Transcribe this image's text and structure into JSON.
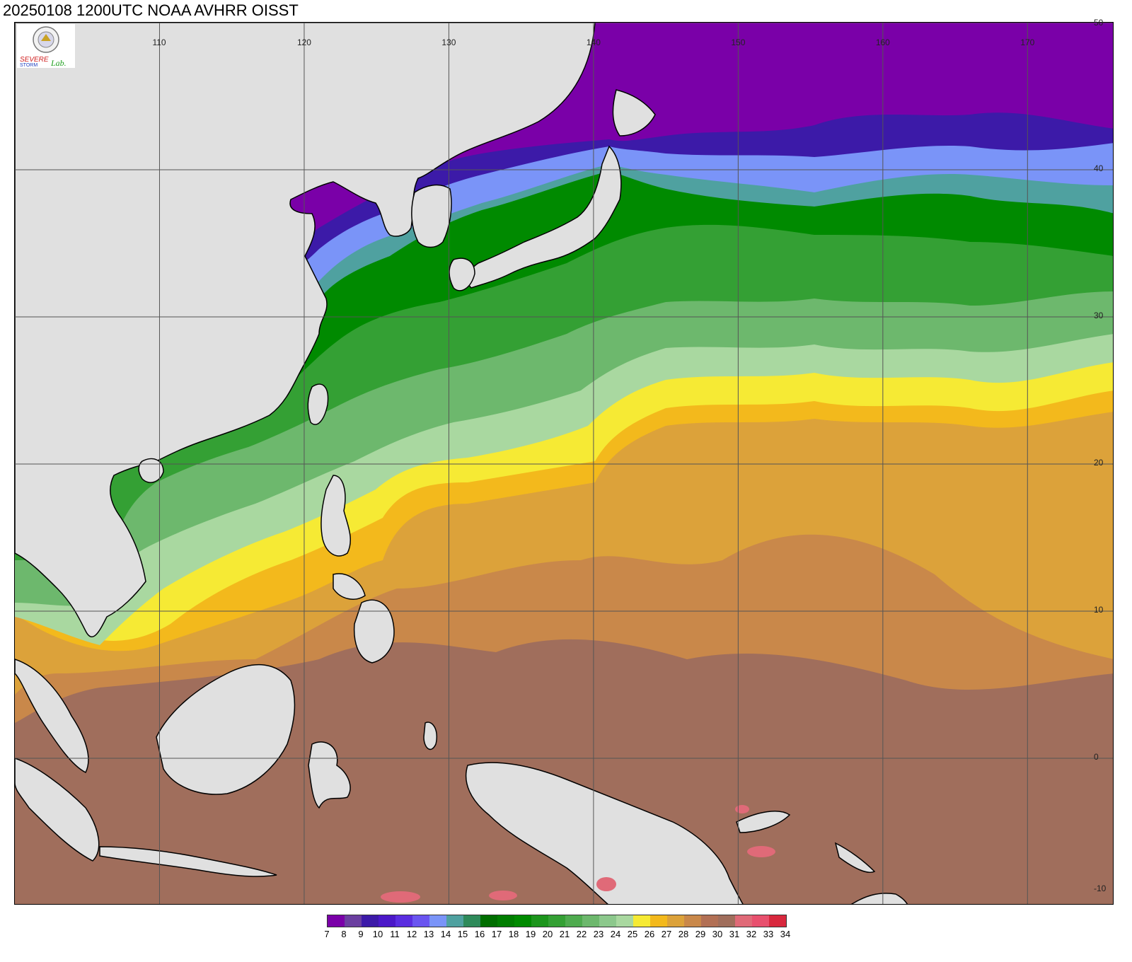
{
  "header": {
    "title": "20250108 1200UTC NOAA AVHRR OISST"
  },
  "logo": {
    "icon": "severe-storm-lab-logo",
    "text": "SEVERE STORM Lab."
  },
  "map": {
    "projection": "equirectangular",
    "lon_range": [
      100,
      176
    ],
    "lat_range": [
      -10,
      50
    ],
    "lon_ticks": [
      {
        "value": 110,
        "label": "110"
      },
      {
        "value": 120,
        "label": "120"
      },
      {
        "value": 130,
        "label": "130"
      },
      {
        "value": 140,
        "label": "140"
      },
      {
        "value": 150,
        "label": "150"
      },
      {
        "value": 160,
        "label": "160"
      },
      {
        "value": 170,
        "label": "170"
      }
    ],
    "lat_ticks": [
      {
        "value": 50,
        "label": "50"
      },
      {
        "value": 40,
        "label": "40"
      },
      {
        "value": 30,
        "label": "30"
      },
      {
        "value": 20,
        "label": "20"
      },
      {
        "value": 10,
        "label": "10"
      },
      {
        "value": 0,
        "label": "0"
      },
      {
        "value": -10,
        "label": "-10"
      }
    ],
    "land_color": "#e0e0e0",
    "coast_color": "#000000",
    "grid_color": "#555555"
  },
  "legend": {
    "colors": [
      "#7a00a8",
      "#6b3fa0",
      "#3c1aa8",
      "#4b18c8",
      "#5a2de0",
      "#6a55f0",
      "#7a94f8",
      "#4fa1a0",
      "#2e8a5a",
      "#006e00",
      "#007d00",
      "#008a00",
      "#1c951c",
      "#34a034",
      "#4fab4f",
      "#6db86d",
      "#8cc88c",
      "#a9d8a0",
      "#f6ea34",
      "#f3b91c",
      "#dca23a",
      "#c9884a",
      "#b27055",
      "#a06e5c",
      "#e06a78",
      "#e8506e",
      "#d8283e"
    ],
    "labels": [
      "7",
      "8",
      "9",
      "10",
      "11",
      "12",
      "13",
      "14",
      "15",
      "16",
      "17",
      "18",
      "19",
      "20",
      "21",
      "22",
      "23",
      "24",
      "25",
      "26",
      "27",
      "28",
      "29",
      "30",
      "31",
      "32",
      "33",
      "34"
    ]
  }
}
